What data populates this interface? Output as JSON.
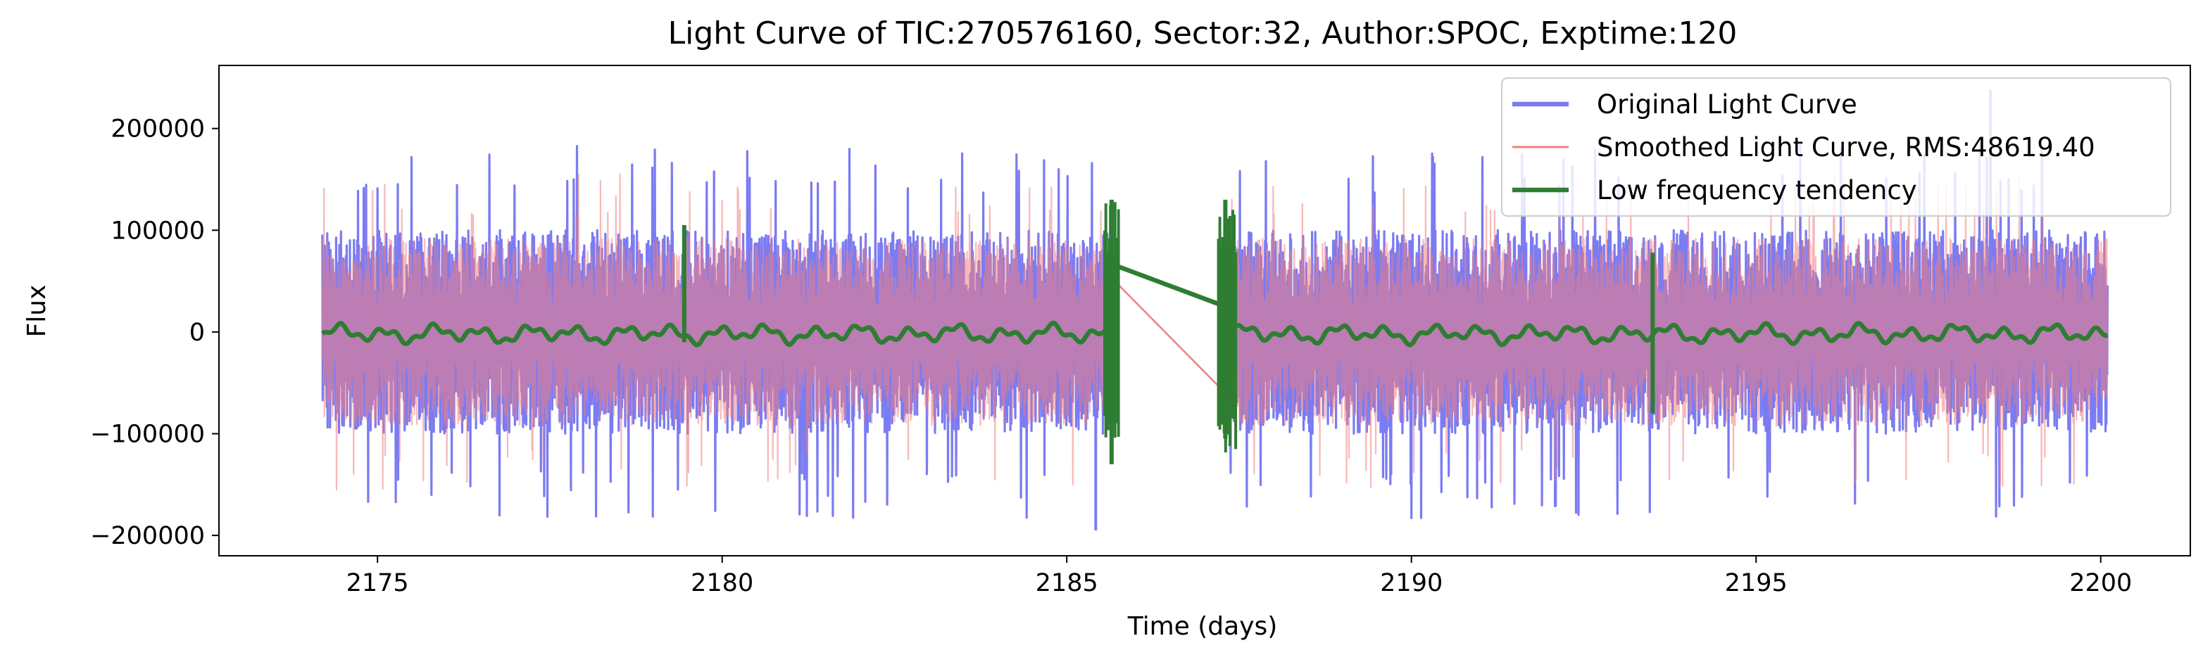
{
  "chart_data": {
    "type": "line",
    "title": "Light Curve of TIC:270576160, Sector:32, Author:SPOC, Exptime:120",
    "xlabel": "Time (days)",
    "ylabel": "Flux",
    "xlim": [
      2172.7,
      2201.3
    ],
    "ylim": [
      -220000,
      262000
    ],
    "xticks": [
      2175,
      2180,
      2185,
      2190,
      2195,
      2200
    ],
    "yticks": [
      -200000,
      -100000,
      0,
      100000,
      200000
    ],
    "xtick_labels": [
      "2175",
      "2180",
      "2185",
      "2190",
      "2195",
      "2200"
    ],
    "ytick_labels": [
      "−200000",
      "−100000",
      "0",
      "100000",
      "200000"
    ],
    "grid": false,
    "legend_position": "upper-right",
    "series": [
      {
        "name": "Original Light Curve",
        "color": "#7b7bf2",
        "style": "dense-oscillation",
        "segments": [
          [
            2174.2,
            2185.6
          ],
          [
            2187.3,
            2200.1
          ]
        ],
        "typical_range": [
          -110000,
          110000
        ],
        "extremes": {
          "max": 238000,
          "min": -195000
        }
      },
      {
        "name": "Smoothed Light Curve, RMS:48619.40",
        "color": "#f08080",
        "style": "dense-oscillation",
        "segments": [
          [
            2174.2,
            2185.6
          ],
          [
            2187.3,
            2200.1
          ]
        ],
        "gap_bridge": {
          "x": [
            2185.55,
            2187.3
          ],
          "y": [
            60000,
            -60000
          ]
        },
        "typical_range": [
          -105000,
          105000
        ]
      },
      {
        "name": "Low frequency tendency",
        "color": "#2e7d32",
        "style": "smooth",
        "baseline": 0,
        "wobble_amplitude": 10000,
        "spikes": [
          {
            "x": 2179.45,
            "low": -10000,
            "high": 105000
          },
          {
            "x": 2185.65,
            "low": -130000,
            "high": 130000
          },
          {
            "x": 2187.3,
            "low": -105000,
            "high": 130000
          },
          {
            "x": 2193.5,
            "low": -80000,
            "high": 78000
          }
        ],
        "gap_bridge": {
          "x": [
            2185.6,
            2187.3
          ],
          "y": [
            68000,
            25000
          ]
        }
      }
    ]
  }
}
